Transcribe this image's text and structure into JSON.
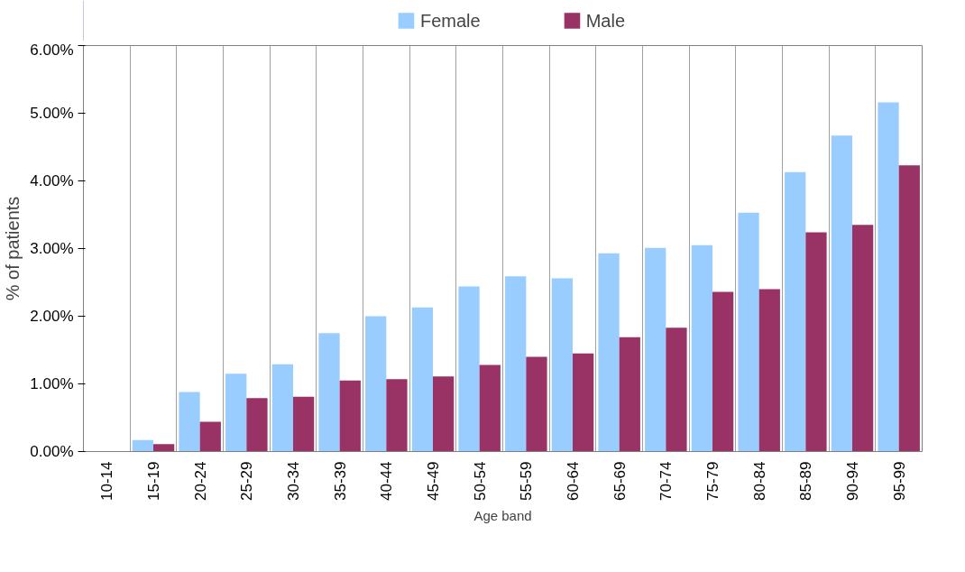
{
  "chart_data": {
    "type": "bar",
    "xlabel": "Age band",
    "ylabel": "% of patients",
    "categories": [
      "10-14",
      "15-19",
      "20-24",
      "25-29",
      "30-34",
      "35-39",
      "40-44",
      "45-49",
      "50-54",
      "55-59",
      "60-64",
      "65-69",
      "70-74",
      "75-79",
      "80-84",
      "85-89",
      "90-94",
      "95-99"
    ],
    "series": [
      {
        "name": "Female",
        "color": "#99ccff",
        "values": [
          0,
          0.17,
          0.88,
          1.15,
          1.29,
          1.75,
          2.0,
          2.13,
          2.44,
          2.59,
          2.56,
          2.93,
          3.01,
          3.05,
          3.53,
          4.13,
          4.67,
          5.16
        ]
      },
      {
        "name": "Male",
        "color": "#993366",
        "values": [
          0,
          0.11,
          0.44,
          0.79,
          0.81,
          1.05,
          1.07,
          1.11,
          1.28,
          1.4,
          1.45,
          1.69,
          1.83,
          2.36,
          2.4,
          3.24,
          3.35,
          4.23
        ]
      }
    ],
    "ylim": [
      0,
      6
    ],
    "yticks": [
      {
        "value": 0,
        "label": "0.00%"
      },
      {
        "value": 1,
        "label": "1.00%"
      },
      {
        "value": 2,
        "label": "2.00%"
      },
      {
        "value": 3,
        "label": "3.00%"
      },
      {
        "value": 4,
        "label": "4.00%"
      },
      {
        "value": 5,
        "label": "5.00%"
      },
      {
        "value": 6,
        "label": "6.00%"
      }
    ],
    "grid": "x",
    "legend": "top"
  }
}
